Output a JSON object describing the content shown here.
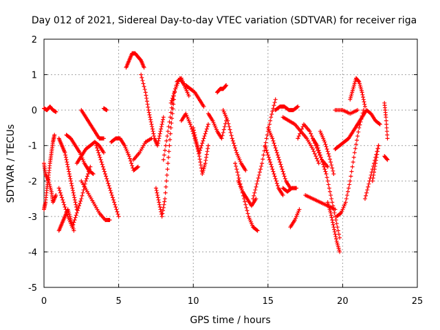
{
  "chart_data": {
    "type": "scatter",
    "title": "Day 012 of 2021, Sidereal Day-to-day VTEC variation (SDTVAR) for receiver riga",
    "xlabel": "GPS time / hours",
    "ylabel": "SDTVAR / TECUs",
    "xlim": [
      0,
      25
    ],
    "ylim": [
      -5,
      2
    ],
    "x_ticks": [
      0,
      5,
      10,
      15,
      20,
      25
    ],
    "y_ticks": [
      -5,
      -4,
      -3,
      -2,
      -1,
      0,
      1,
      2
    ],
    "x_tick_labels": [
      "0",
      "5",
      "10",
      "15",
      "20",
      "25"
    ],
    "y_tick_labels": [
      "-5",
      "-4",
      "-3",
      "-2",
      "-1",
      "0",
      "1",
      "2"
    ],
    "grid": true,
    "legend": "none",
    "marker": "plus",
    "color": "#ff0000",
    "series": [
      {
        "name": "s1",
        "x": [
          0.0,
          0.2,
          0.4,
          0.6,
          0.8
        ],
        "y": [
          0.05,
          0.0,
          0.1,
          0.0,
          -0.05
        ]
      },
      {
        "name": "s2",
        "x": [
          0.0,
          0.1,
          0.2,
          0.3,
          0.4,
          0.5,
          0.6,
          0.7
        ],
        "y": [
          -2.8,
          -2.6,
          -2.2,
          -1.9,
          -1.5,
          -1.2,
          -0.9,
          -0.7
        ]
      },
      {
        "name": "s3",
        "x": [
          0.0,
          0.1,
          0.3,
          0.5,
          0.6,
          0.8
        ],
        "y": [
          -1.5,
          -1.8,
          -2.0,
          -2.3,
          -2.6,
          -2.4
        ]
      },
      {
        "name": "s4",
        "x": [
          1.0,
          1.2,
          1.4,
          1.6,
          1.8,
          2.0
        ],
        "y": [
          -3.4,
          -3.2,
          -3.0,
          -2.8,
          -3.1,
          -3.4
        ]
      },
      {
        "name": "s5",
        "x": [
          1.0,
          1.2,
          1.4,
          1.6,
          1.8,
          2.0,
          2.2
        ],
        "y": [
          -0.8,
          -1.0,
          -1.2,
          -1.6,
          -2.0,
          -2.4,
          -2.8
        ]
      },
      {
        "name": "s6",
        "x": [
          1.0,
          1.3,
          1.6,
          1.9,
          2.2,
          2.5,
          2.8,
          3.1
        ],
        "y": [
          -2.2,
          -2.6,
          -3.0,
          -3.3,
          -2.9,
          -2.5,
          -2.0,
          -1.6
        ]
      },
      {
        "name": "s7",
        "x": [
          1.5,
          1.8,
          2.1,
          2.4,
          2.7,
          3.0,
          3.3
        ],
        "y": [
          -0.7,
          -0.8,
          -1.0,
          -1.2,
          -1.5,
          -1.7,
          -1.8
        ]
      },
      {
        "name": "s8",
        "x": [
          2.5,
          2.8,
          3.1,
          3.4,
          3.7,
          4.0
        ],
        "y": [
          0.0,
          -0.2,
          -0.4,
          -0.6,
          -0.8,
          -0.8
        ]
      },
      {
        "name": "s9",
        "x": [
          2.5,
          2.9,
          3.3,
          3.7,
          4.1,
          4.4
        ],
        "y": [
          -2.0,
          -2.3,
          -2.6,
          -2.9,
          -3.1,
          -3.1
        ]
      },
      {
        "name": "s10",
        "x": [
          2.2,
          2.5,
          2.8,
          3.1,
          3.4,
          3.7,
          4.0
        ],
        "y": [
          -1.5,
          -1.3,
          -1.1,
          -1.0,
          -0.9,
          -1.0,
          -1.2
        ]
      },
      {
        "name": "s11",
        "x": [
          4.0,
          4.2
        ],
        "y": [
          0.05,
          0.0
        ]
      },
      {
        "name": "s12",
        "x": [
          3.5,
          3.8,
          4.1,
          4.4,
          4.7,
          5.0
        ],
        "y": [
          -1.0,
          -1.4,
          -1.8,
          -2.2,
          -2.6,
          -3.0
        ]
      },
      {
        "name": "s13",
        "x": [
          4.5,
          4.8,
          5.1,
          5.4,
          5.7,
          6.0,
          6.3
        ],
        "y": [
          -0.9,
          -0.8,
          -0.8,
          -1.0,
          -1.3,
          -1.7,
          -1.6
        ]
      },
      {
        "name": "s14",
        "x": [
          5.5,
          5.7,
          5.9,
          6.1,
          6.3,
          6.5,
          6.7
        ],
        "y": [
          1.2,
          1.4,
          1.6,
          1.6,
          1.5,
          1.4,
          1.2
        ]
      },
      {
        "name": "s15",
        "x": [
          6.5,
          6.8,
          7.0,
          7.2,
          7.4,
          7.6,
          7.8,
          8.0
        ],
        "y": [
          1.0,
          0.5,
          0.0,
          -0.4,
          -0.8,
          -1.0,
          -0.6,
          -0.2
        ]
      },
      {
        "name": "s16",
        "x": [
          6.0,
          6.4,
          6.8,
          7.2
        ],
        "y": [
          -1.4,
          -1.2,
          -0.9,
          -0.8
        ]
      },
      {
        "name": "s17",
        "x": [
          7.5,
          7.7,
          7.9,
          8.1,
          8.3,
          8.5,
          8.7
        ],
        "y": [
          -2.2,
          -2.6,
          -3.0,
          -2.5,
          -1.5,
          -0.5,
          0.3
        ]
      },
      {
        "name": "s18",
        "x": [
          8.0,
          8.3,
          8.6,
          8.9,
          9.2,
          9.5
        ],
        "y": [
          -1.4,
          -0.6,
          0.2,
          0.8,
          0.9,
          0.6
        ]
      },
      {
        "name": "s19",
        "x": [
          8.5,
          8.8,
          9.1,
          9.4,
          9.7
        ],
        "y": [
          0.2,
          0.6,
          0.9,
          0.7,
          0.4
        ]
      },
      {
        "name": "s20",
        "x": [
          9.5,
          9.8,
          10.1,
          10.4,
          10.7
        ],
        "y": [
          0.7,
          0.6,
          0.5,
          0.3,
          0.1
        ]
      },
      {
        "name": "s21",
        "x": [
          9.2,
          9.5,
          9.8,
          10.1,
          10.4,
          10.7,
          11.0
        ],
        "y": [
          -0.3,
          -0.1,
          -0.4,
          -0.8,
          -1.2,
          -0.8,
          -0.4
        ]
      },
      {
        "name": "s22",
        "x": [
          10.0,
          10.2,
          10.4,
          10.6,
          10.8,
          11.0
        ],
        "y": [
          -0.5,
          -0.9,
          -1.3,
          -1.8,
          -1.5,
          -1.0
        ]
      },
      {
        "name": "s23",
        "x": [
          11.0,
          11.3,
          11.6,
          11.9,
          12.2
        ],
        "y": [
          -0.1,
          -0.3,
          -0.6,
          -0.8,
          -0.3
        ]
      },
      {
        "name": "s24",
        "x": [
          11.6,
          11.8,
          12.0,
          12.2
        ],
        "y": [
          0.5,
          0.6,
          0.6,
          0.7
        ]
      },
      {
        "name": "s25",
        "x": [
          12.0,
          12.3,
          12.6,
          12.9,
          13.2,
          13.5
        ],
        "y": [
          0.0,
          -0.3,
          -0.8,
          -1.2,
          -1.5,
          -1.7
        ]
      },
      {
        "name": "s26",
        "x": [
          12.8,
          13.1,
          13.4,
          13.7,
          14.0,
          14.3
        ],
        "y": [
          -1.5,
          -2.0,
          -2.5,
          -3.0,
          -3.3,
          -3.4
        ]
      },
      {
        "name": "s27",
        "x": [
          13.0,
          13.3,
          13.6,
          13.9,
          14.2
        ],
        "y": [
          -2.0,
          -2.3,
          -2.5,
          -2.7,
          -2.5
        ]
      },
      {
        "name": "s28",
        "x": [
          14.0,
          14.3,
          14.6,
          14.9,
          15.2,
          15.5
        ],
        "y": [
          -2.5,
          -2.0,
          -1.5,
          -0.8,
          -0.2,
          0.3
        ]
      },
      {
        "name": "s29",
        "x": [
          14.8,
          15.1,
          15.4,
          15.7,
          16.0
        ],
        "y": [
          -1.0,
          -1.4,
          -1.8,
          -2.2,
          -2.4
        ]
      },
      {
        "name": "s30",
        "x": [
          15.5,
          15.8,
          16.1,
          16.4,
          16.7,
          17.0
        ],
        "y": [
          0.0,
          0.1,
          0.1,
          0.0,
          0.0,
          0.1
        ]
      },
      {
        "name": "s31",
        "x": [
          15.0,
          15.3,
          15.6,
          15.9,
          16.2,
          16.5
        ],
        "y": [
          -0.5,
          -0.8,
          -1.2,
          -1.6,
          -2.0,
          -2.2
        ]
      },
      {
        "name": "s32",
        "x": [
          16.0,
          16.3,
          16.6,
          16.9
        ],
        "y": [
          -2.2,
          -2.3,
          -2.2,
          -2.2
        ]
      },
      {
        "name": "s33",
        "x": [
          16.5,
          16.8,
          17.1
        ],
        "y": [
          -3.3,
          -3.1,
          -2.8
        ]
      },
      {
        "name": "s34",
        "x": [
          16.0,
          16.4,
          16.8,
          17.2,
          17.6,
          18.0,
          18.4
        ],
        "y": [
          -0.2,
          -0.3,
          -0.4,
          -0.6,
          -0.8,
          -1.1,
          -1.5
        ]
      },
      {
        "name": "s35",
        "x": [
          17.0,
          17.4,
          17.8,
          18.2,
          18.6,
          19.0
        ],
        "y": [
          -0.8,
          -0.4,
          -0.6,
          -1.0,
          -1.4,
          -1.6
        ]
      },
      {
        "name": "s36",
        "x": [
          18.0,
          18.3,
          18.6,
          18.9,
          19.2,
          19.5,
          19.8
        ],
        "y": [
          -0.8,
          -1.0,
          -1.4,
          -1.8,
          -2.4,
          -3.0,
          -3.6
        ]
      },
      {
        "name": "s37",
        "x": [
          19.0,
          19.2,
          19.4,
          19.6,
          19.8
        ],
        "y": [
          -2.6,
          -2.9,
          -3.3,
          -3.7,
          -4.0
        ]
      },
      {
        "name": "s38",
        "x": [
          17.5,
          18.0,
          18.5,
          19.0,
          19.5
        ],
        "y": [
          -2.4,
          -2.5,
          -2.6,
          -2.7,
          -2.8
        ]
      },
      {
        "name": "s39",
        "x": [
          18.5,
          18.8,
          19.1,
          19.4
        ],
        "y": [
          -0.6,
          -0.9,
          -1.3,
          -1.8
        ]
      },
      {
        "name": "s40",
        "x": [
          19.5,
          19.8,
          20.1,
          20.4,
          20.7,
          21.0
        ],
        "y": [
          -1.1,
          -1.0,
          -0.9,
          -0.8,
          -0.6,
          -0.4
        ]
      },
      {
        "name": "s41",
        "x": [
          19.6,
          19.9,
          20.2,
          20.5,
          20.8,
          21.1,
          21.4
        ],
        "y": [
          -3.0,
          -2.9,
          -2.6,
          -2.0,
          -1.2,
          -0.5,
          0.0
        ]
      },
      {
        "name": "s42",
        "x": [
          19.5,
          20.0,
          20.5,
          21.0
        ],
        "y": [
          0.0,
          0.0,
          -0.1,
          0.0
        ]
      },
      {
        "name": "s43",
        "x": [
          20.5,
          20.7,
          20.9,
          21.1,
          21.3,
          21.5
        ],
        "y": [
          0.3,
          0.6,
          0.9,
          0.8,
          0.5,
          0.1
        ]
      },
      {
        "name": "s44",
        "x": [
          21.0,
          21.3,
          21.6,
          21.9,
          22.2,
          22.5
        ],
        "y": [
          -0.4,
          -0.2,
          0.0,
          -0.1,
          -0.3,
          -0.4
        ]
      },
      {
        "name": "s45",
        "x": [
          21.5,
          21.8,
          22.1,
          22.4
        ],
        "y": [
          -2.5,
          -2.0,
          -1.5,
          -1.0
        ]
      },
      {
        "name": "s46",
        "x": [
          22.0,
          22.2,
          22.4
        ],
        "y": [
          -2.0,
          -1.5,
          -1.0
        ]
      },
      {
        "name": "s47",
        "x": [
          22.8,
          22.9,
          23.0
        ],
        "y": [
          0.2,
          -0.2,
          -0.8
        ]
      },
      {
        "name": "s48",
        "x": [
          22.8,
          23.0
        ],
        "y": [
          -1.3,
          -1.4
        ]
      }
    ]
  }
}
